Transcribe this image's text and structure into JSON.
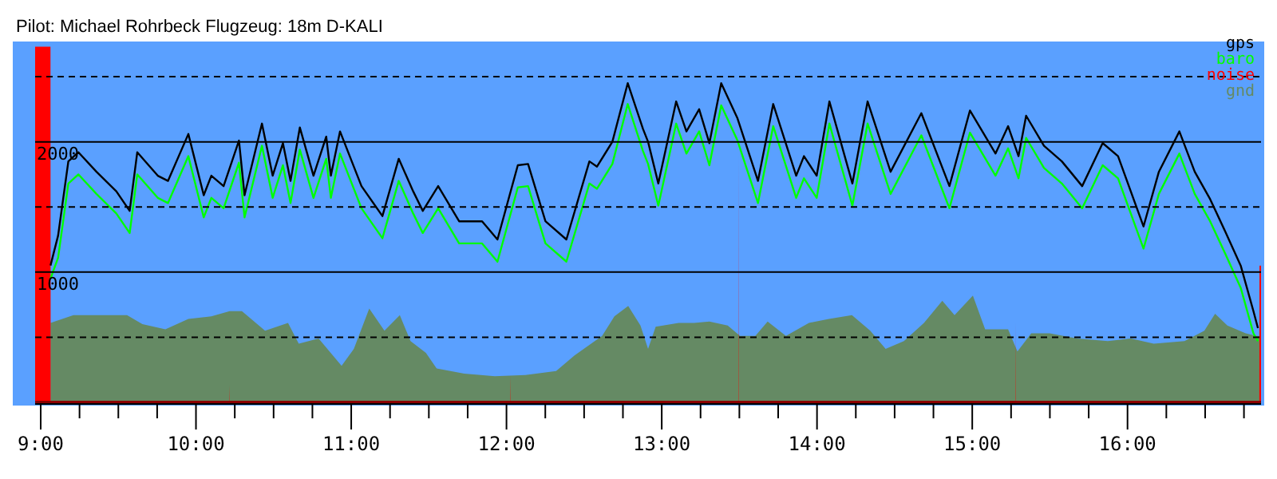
{
  "chart_data": {
    "type": "line",
    "title": "Pilot: Michael Rohrbeck Flugzeug: 18m D-KALI",
    "xlim": [
      8.964,
      16.86
    ],
    "ylim": [
      0,
      2770
    ],
    "xticks": [
      {
        "value": 9,
        "label": "9:00"
      },
      {
        "value": 9.25,
        "label": null
      },
      {
        "value": 9.5,
        "label": null
      },
      {
        "value": 9.75,
        "label": null
      },
      {
        "value": 10,
        "label": "10:00"
      },
      {
        "value": 10.25,
        "label": null
      },
      {
        "value": 10.5,
        "label": null
      },
      {
        "value": 10.75,
        "label": null
      },
      {
        "value": 11,
        "label": "11:00"
      },
      {
        "value": 11.25,
        "label": null
      },
      {
        "value": 11.5,
        "label": null
      },
      {
        "value": 11.75,
        "label": null
      },
      {
        "value": 12,
        "label": "12:00"
      },
      {
        "value": 12.25,
        "label": null
      },
      {
        "value": 12.5,
        "label": null
      },
      {
        "value": 12.75,
        "label": null
      },
      {
        "value": 13,
        "label": "13:00"
      },
      {
        "value": 13.25,
        "label": null
      },
      {
        "value": 13.5,
        "label": null
      },
      {
        "value": 13.75,
        "label": null
      },
      {
        "value": 14,
        "label": "14:00"
      },
      {
        "value": 14.25,
        "label": null
      },
      {
        "value": 14.5,
        "label": null
      },
      {
        "value": 14.75,
        "label": null
      },
      {
        "value": 15,
        "label": "15:00"
      },
      {
        "value": 15.25,
        "label": null
      },
      {
        "value": 15.5,
        "label": null
      },
      {
        "value": 15.75,
        "label": null
      },
      {
        "value": 16,
        "label": "16:00"
      },
      {
        "value": 16.25,
        "label": null
      },
      {
        "value": 16.5,
        "label": null
      },
      {
        "value": 16.75,
        "label": null
      }
    ],
    "yticks": [
      {
        "value": 500,
        "label": null
      },
      1000,
      {
        "value": 1500,
        "label": null
      },
      2000,
      {
        "value": 2500,
        "label": null
      }
    ],
    "grid": "y",
    "legend": "top right",
    "series": [
      {
        "name": "gnd",
        "type": "area",
        "color": "#658a64",
        "x": [
          9.063,
          9.211,
          9.408,
          9.556,
          9.655,
          9.803,
          9.951,
          10.099,
          10.217,
          10.296,
          10.445,
          10.593,
          10.662,
          10.79,
          10.938,
          11.017,
          11.116,
          11.214,
          11.313,
          11.382,
          11.481,
          11.55,
          11.728,
          11.925,
          12.122,
          12.32,
          12.438,
          12.616,
          12.695,
          12.784,
          12.863,
          12.912,
          12.961,
          13.109,
          13.208,
          13.307,
          13.425,
          13.504,
          13.603,
          13.682,
          13.8,
          13.948,
          14.077,
          14.225,
          14.343,
          14.442,
          14.56,
          14.689,
          14.807,
          14.886,
          15.004,
          15.083,
          15.231,
          15.291,
          15.38,
          15.498,
          15.676,
          15.873,
          16.021,
          16.169,
          16.367,
          16.495,
          16.564,
          16.643,
          16.761,
          16.831,
          16.86
        ],
        "values": [
          610,
          670,
          670,
          670,
          600,
          560,
          640,
          660,
          700,
          700,
          550,
          610,
          450,
          490,
          280,
          410,
          720,
          550,
          670,
          470,
          380,
          260,
          220,
          200,
          210,
          240,
          360,
          510,
          660,
          740,
          590,
          410,
          580,
          610,
          610,
          620,
          590,
          510,
          510,
          620,
          510,
          610,
          640,
          670,
          550,
          410,
          470,
          610,
          780,
          670,
          820,
          560,
          560,
          390,
          530,
          530,
          490,
          470,
          490,
          450,
          470,
          550,
          680,
          590,
          530,
          510,
          510
        ]
      },
      {
        "name": "noise",
        "type": "area",
        "color": "#ff0000",
        "x": [
          8.964,
          9.063,
          9.064,
          10.216,
          10.217,
          10.218,
          12.023,
          12.024,
          12.025,
          13.493,
          13.494,
          13.495,
          15.28,
          15.281,
          15.282,
          16.849,
          16.85,
          16.86
        ],
        "values": [
          2730,
          2730,
          0,
          0,
          130,
          0,
          0,
          210,
          0,
          0,
          1910,
          0,
          0,
          610,
          0,
          0,
          1050,
          1050
        ]
      },
      {
        "name": "baro",
        "type": "line",
        "color": "#00ff00",
        "x": [
          9.063,
          9.112,
          9.178,
          9.243,
          9.359,
          9.487,
          9.573,
          9.622,
          9.754,
          9.82,
          9.951,
          10.05,
          10.099,
          10.178,
          10.277,
          10.313,
          10.425,
          10.494,
          10.56,
          10.609,
          10.669,
          10.757,
          10.839,
          10.869,
          10.928,
          11.066,
          11.201,
          11.306,
          11.399,
          11.461,
          11.56,
          11.695,
          11.843,
          11.942,
          12.073,
          12.139,
          12.251,
          12.386,
          12.534,
          12.583,
          12.682,
          12.781,
          12.879,
          12.912,
          12.978,
          13.093,
          13.159,
          13.241,
          13.307,
          13.383,
          13.488,
          13.62,
          13.718,
          13.866,
          13.916,
          13.998,
          14.08,
          14.228,
          14.326,
          14.474,
          14.672,
          14.853,
          14.985,
          15.15,
          15.231,
          15.298,
          15.347,
          15.462,
          15.577,
          15.708,
          15.84,
          15.939,
          16.103,
          16.202,
          16.334,
          16.433,
          16.532,
          16.63,
          16.729,
          16.811,
          16.84
        ],
        "values": [
          950,
          1110,
          1680,
          1750,
          1600,
          1450,
          1300,
          1750,
          1570,
          1530,
          1890,
          1420,
          1570,
          1490,
          1840,
          1420,
          1970,
          1570,
          1820,
          1530,
          1940,
          1570,
          1870,
          1570,
          1910,
          1490,
          1260,
          1700,
          1450,
          1300,
          1490,
          1220,
          1220,
          1080,
          1650,
          1660,
          1220,
          1080,
          1680,
          1640,
          1830,
          2290,
          1930,
          1830,
          1510,
          2140,
          1910,
          2080,
          1820,
          2280,
          2010,
          1530,
          2120,
          1570,
          1720,
          1570,
          2140,
          1510,
          2140,
          1600,
          2050,
          1490,
          2070,
          1740,
          1950,
          1720,
          2030,
          1800,
          1680,
          1490,
          1820,
          1720,
          1180,
          1600,
          1910,
          1600,
          1390,
          1140,
          880,
          530,
          470
        ]
      },
      {
        "name": "gps",
        "type": "line",
        "color": "#000000",
        "x": [
          9.063,
          9.112,
          9.178,
          9.243,
          9.359,
          9.487,
          9.573,
          9.622,
          9.754,
          9.82,
          9.951,
          10.05,
          10.099,
          10.178,
          10.277,
          10.313,
          10.425,
          10.494,
          10.56,
          10.609,
          10.669,
          10.757,
          10.839,
          10.869,
          10.928,
          11.066,
          11.201,
          11.306,
          11.399,
          11.461,
          11.56,
          11.695,
          11.843,
          11.942,
          12.073,
          12.139,
          12.251,
          12.386,
          12.534,
          12.583,
          12.682,
          12.781,
          12.879,
          12.912,
          12.978,
          13.093,
          13.159,
          13.241,
          13.307,
          13.383,
          13.488,
          13.62,
          13.718,
          13.866,
          13.916,
          13.998,
          14.08,
          14.228,
          14.326,
          14.474,
          14.672,
          14.853,
          14.985,
          15.15,
          15.231,
          15.298,
          15.347,
          15.462,
          15.577,
          15.708,
          15.84,
          15.939,
          16.103,
          16.202,
          16.334,
          16.433,
          16.532,
          16.63,
          16.729,
          16.811,
          16.84
        ],
        "values": [
          1050,
          1280,
          1850,
          1920,
          1770,
          1620,
          1470,
          1920,
          1740,
          1700,
          2060,
          1590,
          1740,
          1660,
          2010,
          1590,
          2140,
          1740,
          1990,
          1700,
          2110,
          1740,
          2040,
          1740,
          2080,
          1660,
          1430,
          1870,
          1620,
          1470,
          1660,
          1390,
          1390,
          1250,
          1820,
          1830,
          1390,
          1250,
          1850,
          1810,
          2000,
          2450,
          2100,
          2000,
          1680,
          2310,
          2080,
          2250,
          1990,
          2450,
          2180,
          1700,
          2290,
          1740,
          1890,
          1740,
          2310,
          1680,
          2310,
          1770,
          2220,
          1660,
          2240,
          1910,
          2120,
          1890,
          2200,
          1970,
          1850,
          1660,
          1990,
          1890,
          1350,
          1770,
          2080,
          1770,
          1560,
          1310,
          1050,
          700,
          570
        ]
      }
    ]
  }
}
